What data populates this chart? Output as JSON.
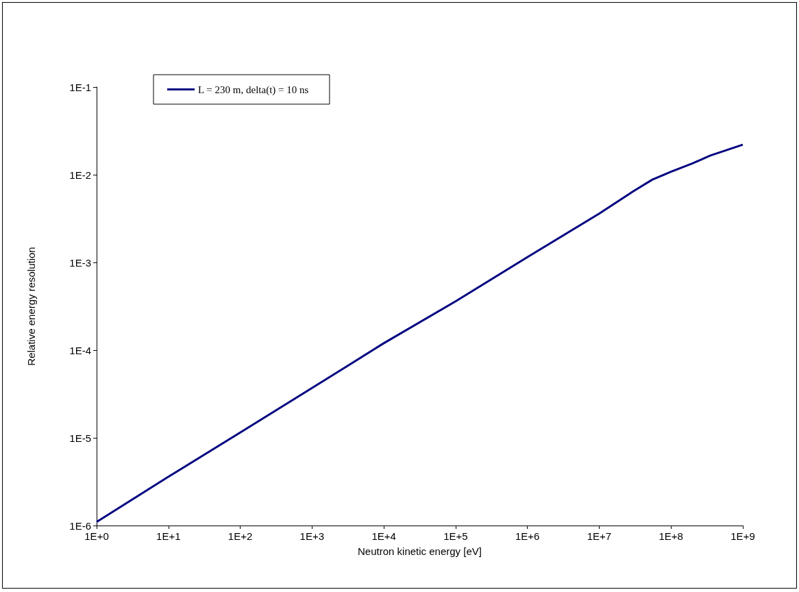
{
  "chart_data": {
    "type": "line",
    "xlabel": "Neutron kinetic energy [eV]",
    "ylabel": "Relative energy resolution",
    "log": "xy",
    "grid": false,
    "legend": "top left",
    "marker": "none",
    "line_style": "solid",
    "xlim": [
      1,
      1000000000
    ],
    "ylim": [
      1e-06,
      0.1
    ],
    "xticks": [
      {
        "value": 1,
        "label": "1E+0"
      },
      {
        "value": 10,
        "label": "1E+1"
      },
      {
        "value": 100,
        "label": "1E+2"
      },
      {
        "value": 1000,
        "label": "1E+3"
      },
      {
        "value": 10000,
        "label": "1E+4"
      },
      {
        "value": 100000,
        "label": "1E+5"
      },
      {
        "value": 1000000,
        "label": "1E+6"
      },
      {
        "value": 10000000,
        "label": "1E+7"
      },
      {
        "value": 100000000,
        "label": "1E+8"
      },
      {
        "value": 1000000000,
        "label": "1E+9"
      }
    ],
    "yticks": [
      {
        "value": 1e-06,
        "label": "1E-6"
      },
      {
        "value": 1e-05,
        "label": "1E-5"
      },
      {
        "value": 0.0001,
        "label": "1E-4"
      },
      {
        "value": 0.001,
        "label": "1E-3"
      },
      {
        "value": 0.01,
        "label": "1E-2"
      },
      {
        "value": 0.1,
        "label": "1E-1"
      }
    ],
    "series": [
      {
        "name": "L = 230 m, delta(t) = 10 ns",
        "color": "#000080",
        "x": [
          1,
          10,
          100,
          1000,
          10000,
          100000,
          1000000,
          10000000,
          30000000,
          55000000,
          100000000,
          200000000,
          350000000,
          1000000000
        ],
        "values": [
          1.1e-06,
          3.6e-06,
          1.15e-05,
          3.7e-05,
          0.00012,
          0.00036,
          0.00115,
          0.0036,
          0.0065,
          0.0088,
          0.0108,
          0.0135,
          0.0165,
          0.022
        ]
      }
    ]
  }
}
